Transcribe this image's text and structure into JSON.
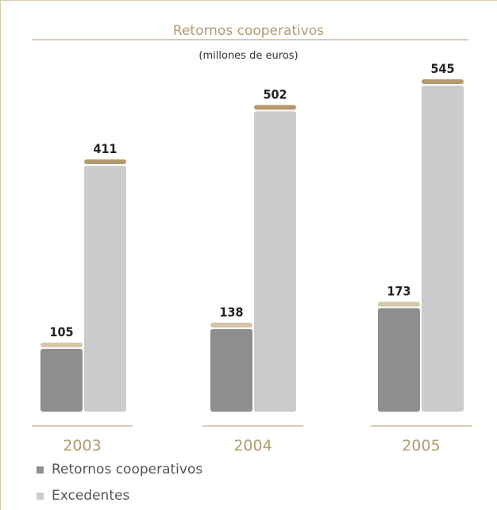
{
  "chart_data": {
    "type": "bar",
    "title": "Retornos cooperativos",
    "subtitle": "(millones de euros)",
    "categories": [
      "2003",
      "2004",
      "2005"
    ],
    "series": [
      {
        "name": "Retornos cooperativos",
        "values": [
          105,
          138,
          173
        ],
        "color": "#8e8e90",
        "cap_color": "#d6c6a8"
      },
      {
        "name": "Excedentes",
        "values": [
          411,
          502,
          545
        ],
        "color": "#cbcbcd",
        "cap_color": "#b39a6e"
      }
    ],
    "ylim": [
      0,
      545
    ],
    "grid": false,
    "legend_position": "bottom-left",
    "colors": {
      "accent": "#b39a6e",
      "title_text": "#b39a6e",
      "year_text": "#b39a6e",
      "value_text": "#222222",
      "legend_text": "#555555",
      "frame": "#d8c9ad"
    }
  }
}
